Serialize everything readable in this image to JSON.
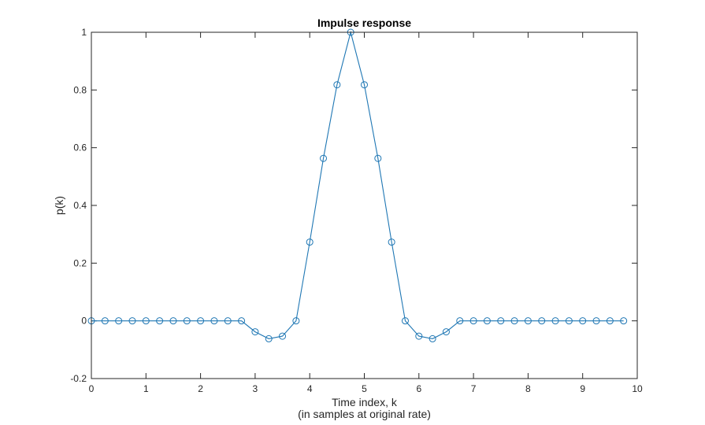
{
  "chart_data": {
    "type": "line",
    "title": "Impulse response",
    "xlabel": "Time index, k",
    "xlabel_line2": "(in samples at original rate)",
    "ylabel": "p(k)",
    "xlim": [
      0,
      10
    ],
    "ylim": [
      -0.2,
      1
    ],
    "x_ticks": [
      "0",
      "1",
      "2",
      "3",
      "4",
      "5",
      "6",
      "7",
      "8",
      "9",
      "10"
    ],
    "y_ticks": [
      "-0.2",
      "0",
      "0.2",
      "0.4",
      "0.6",
      "0.8",
      "1"
    ],
    "grid": false,
    "legend": "none",
    "marker": "circle",
    "series": [
      {
        "color": "#1f77b4",
        "x": [
          0,
          0.25,
          0.5,
          0.75,
          1,
          1.25,
          1.5,
          1.75,
          2,
          2.25,
          2.5,
          2.75,
          3,
          3.25,
          3.5,
          3.75,
          4,
          4.25,
          4.5,
          4.75,
          5,
          5.25,
          5.5,
          5.75,
          6,
          6.25,
          6.5,
          6.75,
          7,
          7.25,
          7.5,
          7.75,
          8,
          8.25,
          8.5,
          8.75,
          9,
          9.25,
          9.5,
          9.75
        ],
        "values": [
          0,
          0,
          0,
          0,
          0,
          0,
          0,
          0,
          0,
          0,
          0,
          0,
          -0.038,
          -0.062,
          -0.053,
          0,
          0.273,
          0.563,
          0.818,
          1,
          0.818,
          0.563,
          0.273,
          0,
          -0.053,
          -0.062,
          -0.038,
          0,
          0,
          0,
          0,
          0,
          0,
          0,
          0,
          0,
          0,
          0,
          0,
          0
        ]
      }
    ]
  }
}
